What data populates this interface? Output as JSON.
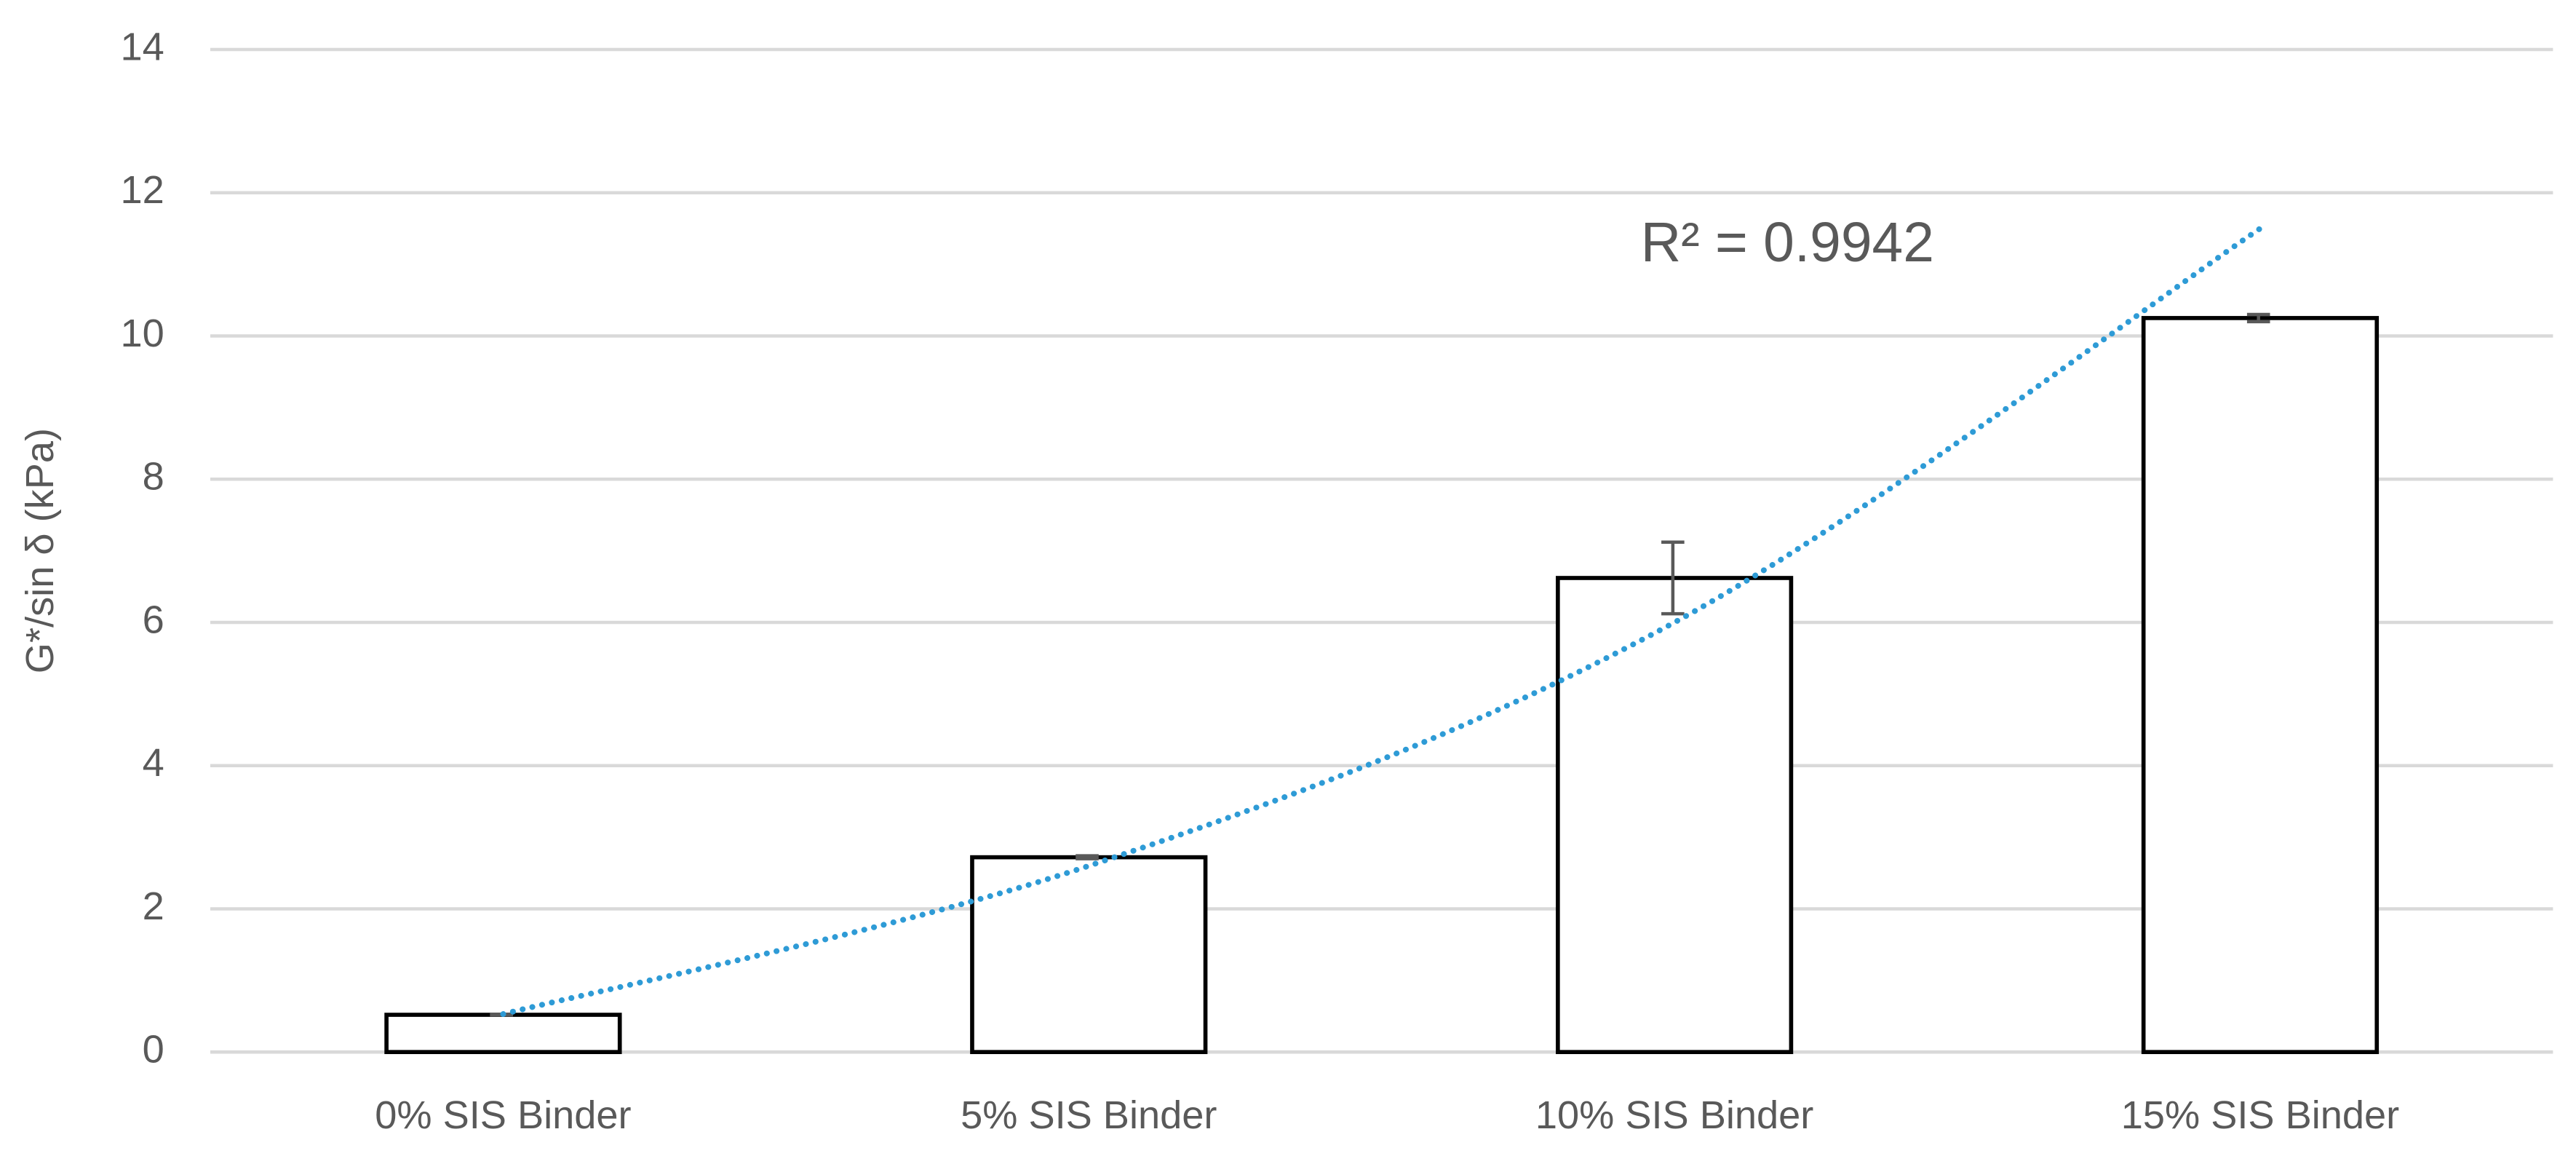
{
  "chart_data": {
    "type": "bar",
    "y_label": "G*/sin δ (kPa)",
    "categories": [
      "0% SIS Binder",
      "5% SIS Binder",
      "10% SIS Binder",
      "15% SIS Binder"
    ],
    "values": [
      0.52,
      2.72,
      6.62,
      10.25
    ],
    "errors": [
      0,
      0.02,
      0.5,
      0.05
    ],
    "color": "#ffffff",
    "edge_color": "#000000",
    "error_color": "#595959",
    "trendline": {
      "values": [
        0.53,
        2.6,
        6.0,
        11.5
      ],
      "color": "#2e9bd6",
      "style": "dotted"
    },
    "annotation": "R² = 0.9942",
    "ylim": [
      0,
      14
    ],
    "yticks": [
      0,
      2,
      4,
      6,
      8,
      10,
      12,
      14
    ],
    "grid": true
  }
}
